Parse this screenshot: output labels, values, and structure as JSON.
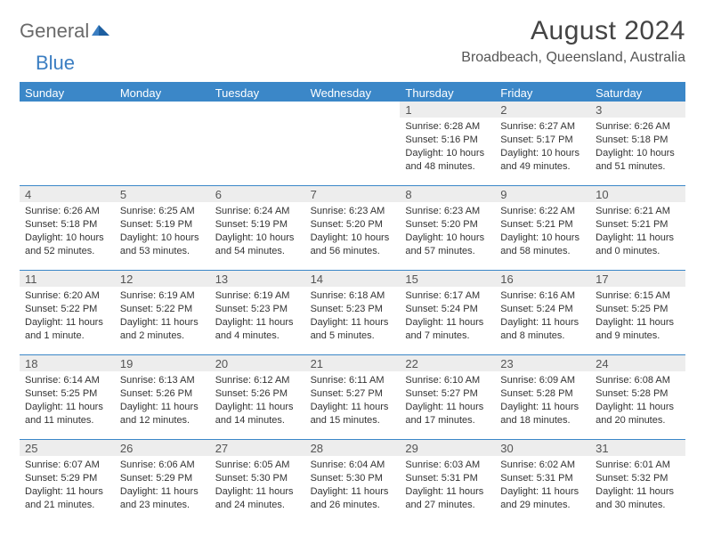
{
  "brand": {
    "part1": "General",
    "part2": "Blue"
  },
  "title": "August 2024",
  "location": "Broadbeach, Queensland, Australia",
  "colors": {
    "header_bg": "#3b87c8",
    "header_text": "#ffffff",
    "daynum_bg": "#ededed",
    "border": "#3b87c8",
    "body_text": "#333333",
    "title_text": "#444444",
    "brand_blue": "#3b7ec2"
  },
  "typography": {
    "title_fontsize": 30,
    "location_fontsize": 16,
    "dow_fontsize": 13,
    "daynum_fontsize": 13,
    "body_fontsize": 11
  },
  "dow": [
    "Sunday",
    "Monday",
    "Tuesday",
    "Wednesday",
    "Thursday",
    "Friday",
    "Saturday"
  ],
  "weeks": [
    [
      null,
      null,
      null,
      null,
      {
        "n": "1",
        "sunrise": "6:28 AM",
        "sunset": "5:16 PM",
        "daylight": "10 hours and 48 minutes."
      },
      {
        "n": "2",
        "sunrise": "6:27 AM",
        "sunset": "5:17 PM",
        "daylight": "10 hours and 49 minutes."
      },
      {
        "n": "3",
        "sunrise": "6:26 AM",
        "sunset": "5:18 PM",
        "daylight": "10 hours and 51 minutes."
      }
    ],
    [
      {
        "n": "4",
        "sunrise": "6:26 AM",
        "sunset": "5:18 PM",
        "daylight": "10 hours and 52 minutes."
      },
      {
        "n": "5",
        "sunrise": "6:25 AM",
        "sunset": "5:19 PM",
        "daylight": "10 hours and 53 minutes."
      },
      {
        "n": "6",
        "sunrise": "6:24 AM",
        "sunset": "5:19 PM",
        "daylight": "10 hours and 54 minutes."
      },
      {
        "n": "7",
        "sunrise": "6:23 AM",
        "sunset": "5:20 PM",
        "daylight": "10 hours and 56 minutes."
      },
      {
        "n": "8",
        "sunrise": "6:23 AM",
        "sunset": "5:20 PM",
        "daylight": "10 hours and 57 minutes."
      },
      {
        "n": "9",
        "sunrise": "6:22 AM",
        "sunset": "5:21 PM",
        "daylight": "10 hours and 58 minutes."
      },
      {
        "n": "10",
        "sunrise": "6:21 AM",
        "sunset": "5:21 PM",
        "daylight": "11 hours and 0 minutes."
      }
    ],
    [
      {
        "n": "11",
        "sunrise": "6:20 AM",
        "sunset": "5:22 PM",
        "daylight": "11 hours and 1 minute."
      },
      {
        "n": "12",
        "sunrise": "6:19 AM",
        "sunset": "5:22 PM",
        "daylight": "11 hours and 2 minutes."
      },
      {
        "n": "13",
        "sunrise": "6:19 AM",
        "sunset": "5:23 PM",
        "daylight": "11 hours and 4 minutes."
      },
      {
        "n": "14",
        "sunrise": "6:18 AM",
        "sunset": "5:23 PM",
        "daylight": "11 hours and 5 minutes."
      },
      {
        "n": "15",
        "sunrise": "6:17 AM",
        "sunset": "5:24 PM",
        "daylight": "11 hours and 7 minutes."
      },
      {
        "n": "16",
        "sunrise": "6:16 AM",
        "sunset": "5:24 PM",
        "daylight": "11 hours and 8 minutes."
      },
      {
        "n": "17",
        "sunrise": "6:15 AM",
        "sunset": "5:25 PM",
        "daylight": "11 hours and 9 minutes."
      }
    ],
    [
      {
        "n": "18",
        "sunrise": "6:14 AM",
        "sunset": "5:25 PM",
        "daylight": "11 hours and 11 minutes."
      },
      {
        "n": "19",
        "sunrise": "6:13 AM",
        "sunset": "5:26 PM",
        "daylight": "11 hours and 12 minutes."
      },
      {
        "n": "20",
        "sunrise": "6:12 AM",
        "sunset": "5:26 PM",
        "daylight": "11 hours and 14 minutes."
      },
      {
        "n": "21",
        "sunrise": "6:11 AM",
        "sunset": "5:27 PM",
        "daylight": "11 hours and 15 minutes."
      },
      {
        "n": "22",
        "sunrise": "6:10 AM",
        "sunset": "5:27 PM",
        "daylight": "11 hours and 17 minutes."
      },
      {
        "n": "23",
        "sunrise": "6:09 AM",
        "sunset": "5:28 PM",
        "daylight": "11 hours and 18 minutes."
      },
      {
        "n": "24",
        "sunrise": "6:08 AM",
        "sunset": "5:28 PM",
        "daylight": "11 hours and 20 minutes."
      }
    ],
    [
      {
        "n": "25",
        "sunrise": "6:07 AM",
        "sunset": "5:29 PM",
        "daylight": "11 hours and 21 minutes."
      },
      {
        "n": "26",
        "sunrise": "6:06 AM",
        "sunset": "5:29 PM",
        "daylight": "11 hours and 23 minutes."
      },
      {
        "n": "27",
        "sunrise": "6:05 AM",
        "sunset": "5:30 PM",
        "daylight": "11 hours and 24 minutes."
      },
      {
        "n": "28",
        "sunrise": "6:04 AM",
        "sunset": "5:30 PM",
        "daylight": "11 hours and 26 minutes."
      },
      {
        "n": "29",
        "sunrise": "6:03 AM",
        "sunset": "5:31 PM",
        "daylight": "11 hours and 27 minutes."
      },
      {
        "n": "30",
        "sunrise": "6:02 AM",
        "sunset": "5:31 PM",
        "daylight": "11 hours and 29 minutes."
      },
      {
        "n": "31",
        "sunrise": "6:01 AM",
        "sunset": "5:32 PM",
        "daylight": "11 hours and 30 minutes."
      }
    ]
  ],
  "labels": {
    "sunrise_prefix": "Sunrise: ",
    "sunset_prefix": "Sunset: ",
    "daylight_prefix": "Daylight: "
  }
}
